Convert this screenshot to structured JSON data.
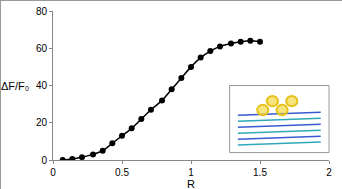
{
  "chart_data": {
    "type": "line",
    "x_label": "R",
    "y_label": "ΔF/F₀",
    "x": [
      0.07,
      0.14,
      0.21,
      0.29,
      0.36,
      0.43,
      0.5,
      0.57,
      0.64,
      0.71,
      0.79,
      0.86,
      0.93,
      1.0,
      1.07,
      1.14,
      1.21,
      1.29,
      1.36,
      1.43,
      1.5
    ],
    "values": [
      0,
      0.5,
      1.5,
      3,
      5,
      9,
      13,
      17,
      22,
      27,
      32,
      38,
      44,
      50,
      55,
      58.5,
      61,
      62.5,
      63.5,
      64,
      63.5
    ],
    "color": "#000000",
    "marker": "circle",
    "line_style": "solid",
    "xlim": [
      0,
      2
    ],
    "xticks": [
      0,
      0.5,
      1,
      1.5,
      2
    ],
    "ylim": [
      0,
      80
    ],
    "yticks": [
      0,
      20,
      40,
      60,
      80
    ],
    "grid": false
  }
}
